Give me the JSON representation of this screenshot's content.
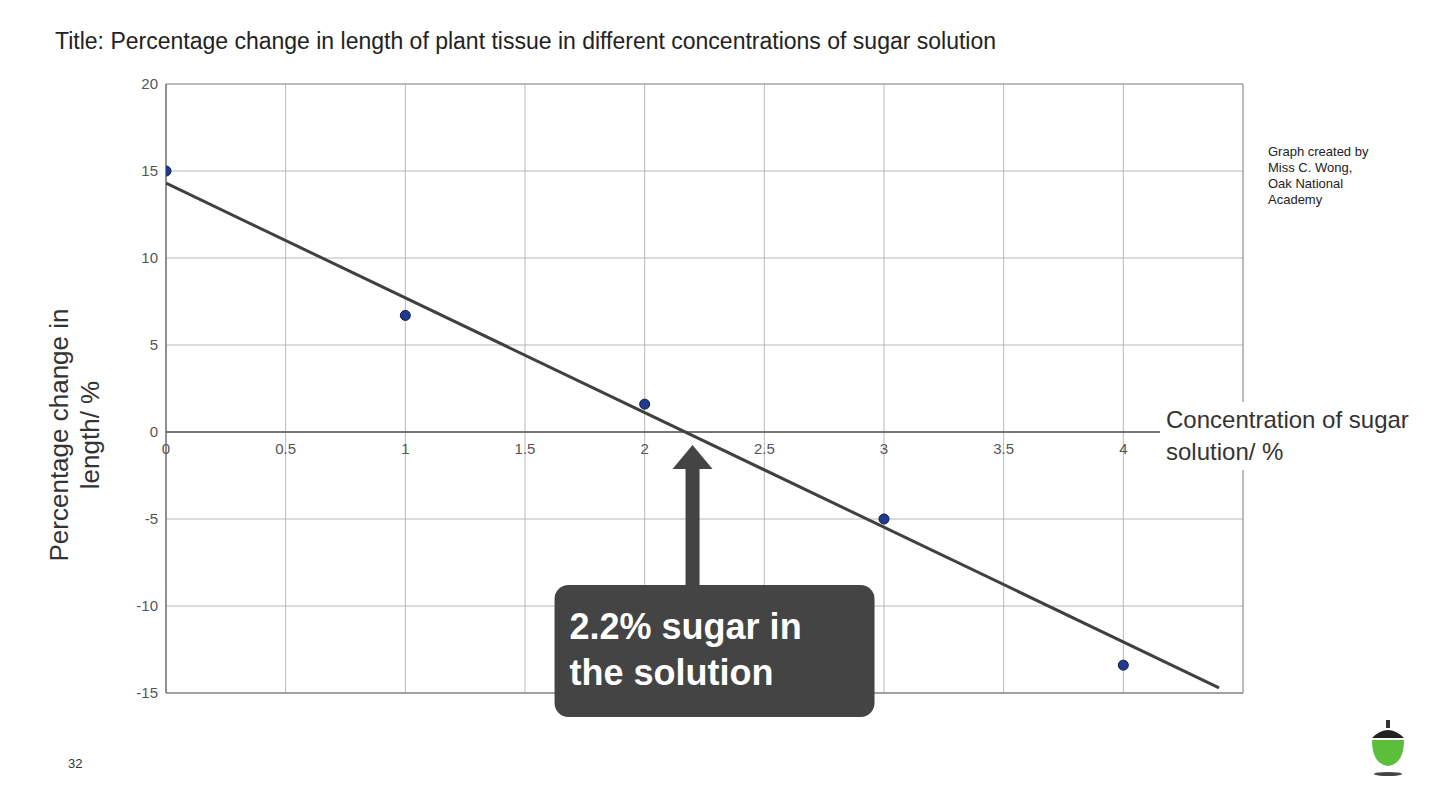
{
  "chart_data": {
    "type": "scatter",
    "title": "Title: Percentage change in length of plant tissue in different concentrations of sugar solution",
    "x_label": "Concentration of sugar solution/ %",
    "y_label": "Percentage change in length/ %",
    "x": [
      0,
      1,
      2,
      3,
      4
    ],
    "values": [
      15,
      6.7,
      1.6,
      -5,
      -13.4
    ],
    "color": "#1f3a8f",
    "marker": "circle",
    "trend_line": {
      "x": [
        0,
        4.4
      ],
      "values": [
        14.3,
        -14.7
      ],
      "color": "#404040",
      "line_style": "solid"
    },
    "annotations": [
      {
        "text": "2.2% sugar in the solution",
        "x": 2.2,
        "y": 0
      },
      {
        "text": "Graph created by Miss C. Wong, Oak National Academy"
      },
      {
        "text": "32"
      }
    ],
    "xlim": [
      0,
      4.5
    ],
    "xticks": [
      0,
      0.5,
      1,
      1.5,
      2,
      2.5,
      3,
      3.5,
      4
    ],
    "ylim": [
      -15,
      20
    ],
    "yticks": [
      -15,
      -10,
      -5,
      0,
      5,
      10,
      15,
      20
    ],
    "grid": true
  }
}
